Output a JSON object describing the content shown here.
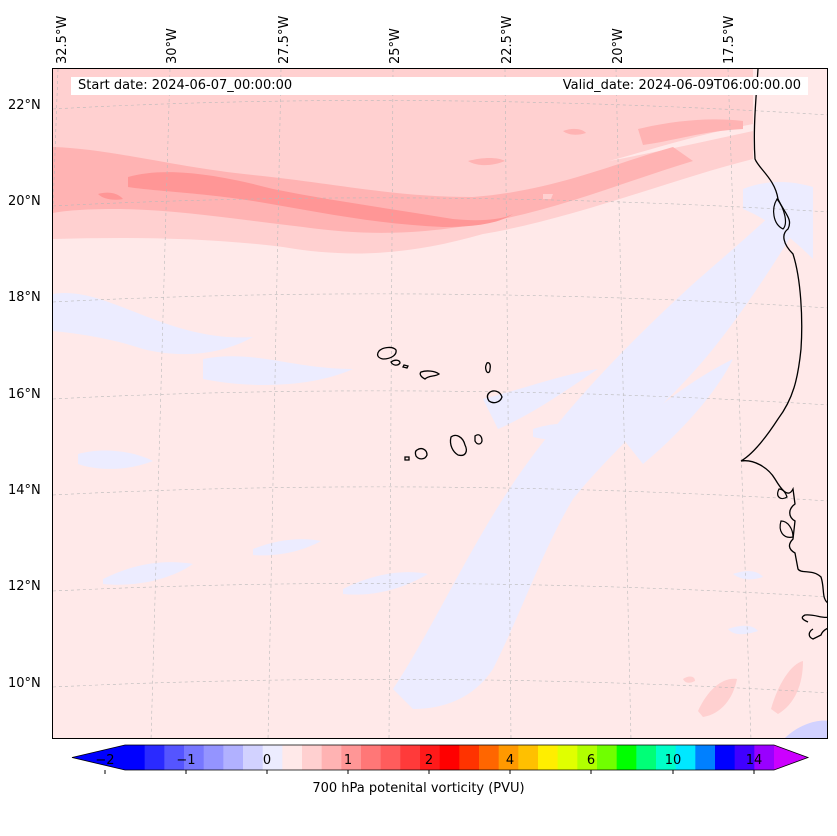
{
  "map": {
    "start_date": "Start date: 2024-06-07_00:00:00",
    "valid_date": "Valid_date: 2024-06-09T06:00:00.00",
    "longitude_labels": [
      "32.5°W",
      "30°W",
      "27.5°W",
      "25°W",
      "22.5°W",
      "20°W",
      "17.5°W"
    ],
    "latitude_labels": [
      "22°N",
      "20°N",
      "18°N",
      "16°N",
      "14°N",
      "12°N",
      "10°N"
    ],
    "background_color": "#ffe9e9",
    "coastline_color": "#000000"
  },
  "colorbar": {
    "label": "700 hPa potenital vorticity (PVU)",
    "tick_labels": [
      "−2",
      "−1",
      "0",
      "1",
      "2",
      "4",
      "6",
      "10",
      "14"
    ],
    "colors": [
      "#0000ff",
      "#2a2aff",
      "#5555ff",
      "#7777ff",
      "#9494ff",
      "#b1b1ff",
      "#d2d2ff",
      "#ececff",
      "#ffe9e9",
      "#ffd0d0",
      "#ffb3b3",
      "#ff9696",
      "#ff7777",
      "#ff5c5c",
      "#ff3a3a",
      "#ff1a1a",
      "#ff0000",
      "#ff3300",
      "#ff6600",
      "#ff9900",
      "#ffc000",
      "#ffee00",
      "#e0ff00",
      "#b0ff00",
      "#70ff00",
      "#00ff00",
      "#00ff77",
      "#00ffc8",
      "#00e8ff",
      "#0080ff",
      "#0000ff",
      "#4000ff",
      "#9900ff"
    ],
    "extend_low_color": "#0000ff",
    "extend_high_color": "#cc00ff"
  }
}
